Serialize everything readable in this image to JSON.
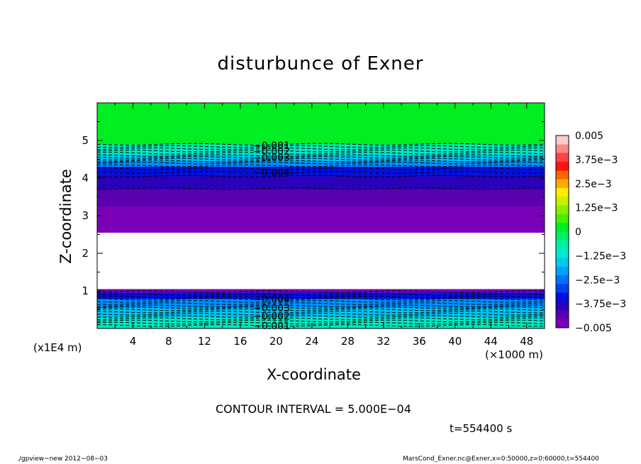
{
  "chart_data": {
    "type": "heatmap",
    "title": "disturbunce of Exner",
    "xlabel": "X-coordinate",
    "ylabel": "Z-coordinate",
    "x_unit": "(×1000 m)",
    "y_unit": "(x1E4 m)",
    "xlim": [
      0,
      50
    ],
    "ylim": [
      0,
      6
    ],
    "x_ticks": [
      "4",
      "8",
      "12",
      "16",
      "20",
      "24",
      "28",
      "32",
      "36",
      "40",
      "44",
      "48"
    ],
    "x_tick_values": [
      4,
      8,
      12,
      16,
      20,
      24,
      28,
      32,
      36,
      40,
      44,
      48
    ],
    "y_ticks": [
      "1",
      "2",
      "3",
      "4",
      "5"
    ],
    "y_tick_values": [
      1,
      2,
      3,
      4,
      5
    ],
    "bands": [
      {
        "z0": 4.9,
        "z1": 6.0,
        "color": "#00ee22"
      },
      {
        "z0": 4.62,
        "z1": 4.9,
        "color": "#00e8c0"
      },
      {
        "z0": 4.45,
        "z1": 4.62,
        "color": "#00c0ee"
      },
      {
        "z0": 4.3,
        "z1": 4.45,
        "color": "#0090ff"
      },
      {
        "z0": 4.05,
        "z1": 4.3,
        "color": "#0010e0"
      },
      {
        "z0": 3.7,
        "z1": 4.05,
        "color": "#2a00b8"
      },
      {
        "z0": 3.25,
        "z1": 3.7,
        "color": "#5a00b0"
      },
      {
        "z0": 2.55,
        "z1": 3.25,
        "color": "#7a00b8"
      },
      {
        "z0": 1.05,
        "z1": 2.55,
        "color": "#ffffff"
      },
      {
        "z0": 0.95,
        "z1": 1.05,
        "color": "#7a00b8"
      },
      {
        "z0": 0.78,
        "z1": 0.95,
        "color": "#0010e0"
      },
      {
        "z0": 0.55,
        "z1": 0.78,
        "color": "#0090ff"
      },
      {
        "z0": 0.3,
        "z1": 0.55,
        "color": "#00c0ee"
      },
      {
        "z0": 0.0,
        "z1": 0.3,
        "color": "#00e8c0"
      }
    ],
    "contour_labels": [
      {
        "text": "−0.001",
        "x": 19.5,
        "z": 4.87
      },
      {
        "text": "−0.002",
        "x": 19.5,
        "z": 4.72
      },
      {
        "text": "−0.003",
        "x": 19.5,
        "z": 4.55
      },
      {
        "text": "−0.004",
        "x": 19.5,
        "z": 4.15
      },
      {
        "text": "−0.004",
        "x": 19.5,
        "z": 0.78
      },
      {
        "text": "−0.003",
        "x": 19.5,
        "z": 0.55
      },
      {
        "text": "−0.002",
        "x": 19.5,
        "z": 0.33
      },
      {
        "text": "−0.001",
        "x": 19.5,
        "z": 0.08
      }
    ],
    "colorbar": {
      "labels": [
        "0.005",
        "3.75e−3",
        "2.5e−3",
        "1.25e−3",
        "0",
        "−1.25e−3",
        "−2.5e−3",
        "−3.75e−3",
        "−0.005"
      ],
      "colors": [
        "#ffcccc",
        "#ff8888",
        "#ff4444",
        "#ff1111",
        "#ff6600",
        "#ffaa00",
        "#ffee00",
        "#ccee00",
        "#88ee00",
        "#44ee00",
        "#00ee22",
        "#00ee66",
        "#00eeaa",
        "#00e8d8",
        "#00c8ee",
        "#00a0ff",
        "#0070ff",
        "#0040ee",
        "#0010e0",
        "#2a00b8",
        "#5a00b0",
        "#7a00b8"
      ]
    }
  },
  "annotations": {
    "contour_interval": "CONTOUR INTERVAL = 5.000E−04",
    "time": "t=554400 s",
    "footer_left": "./gpview−new  2012−08−03",
    "footer_right": "MarsCond_Exner.nc@Exner,x=0:50000,z=0:60000,t=554400"
  }
}
